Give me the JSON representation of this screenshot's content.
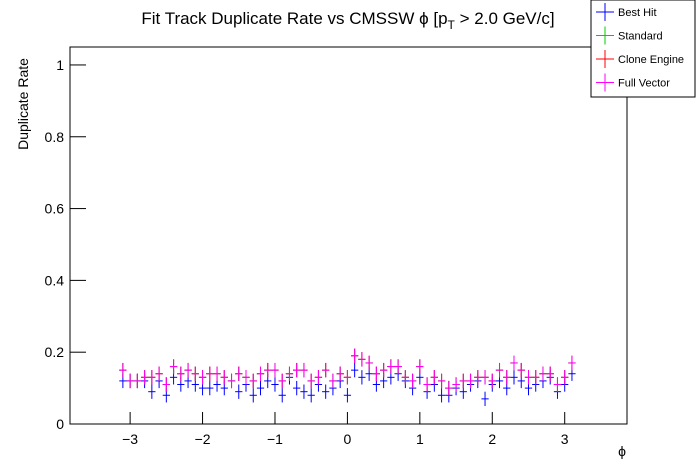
{
  "chart_data": {
    "type": "errorbar",
    "title": {
      "main": "Fit Track Duplicate Rate vs CMSSW ϕ [p",
      "sub": "T",
      "tail": " > 2.0 GeV/c]"
    },
    "x_label": "ϕ",
    "y_label": "Duplicate Rate",
    "xlim": [
      -3.83,
      3.86
    ],
    "ylim": [
      0,
      1.05
    ],
    "xticks": [
      {
        "value": -3,
        "label": "−3"
      },
      {
        "value": -2,
        "label": "−2"
      },
      {
        "value": -1,
        "label": "−1"
      },
      0,
      1,
      2,
      3
    ],
    "yticks": [
      0,
      0.2,
      0.4,
      0.6,
      0.8,
      1
    ],
    "xerr": 0.05,
    "x": [
      -3.1,
      -3.0,
      -2.9,
      -2.8,
      -2.7,
      -2.6,
      -2.5,
      -2.4,
      -2.3,
      -2.2,
      -2.1,
      -2.0,
      -1.9,
      -1.8,
      -1.7,
      -1.6,
      -1.5,
      -1.4,
      -1.3,
      -1.2,
      -1.1,
      -1.0,
      -0.9,
      -0.8,
      -0.7,
      -0.6,
      -0.5,
      -0.4,
      -0.3,
      -0.2,
      -0.1,
      0.0,
      0.1,
      0.2,
      0.3,
      0.4,
      0.5,
      0.6,
      0.7,
      0.8,
      0.9,
      1.0,
      1.1,
      1.2,
      1.3,
      1.4,
      1.5,
      1.6,
      1.7,
      1.8,
      1.9,
      2.0,
      2.1,
      2.2,
      2.3,
      2.4,
      2.5,
      2.6,
      2.7,
      2.8,
      2.9,
      3.0,
      3.1
    ],
    "legend": "top-right",
    "series": [
      {
        "name": "Best Hit",
        "color": "#0000ff",
        "error": 0.02,
        "values": [
          0.12,
          0.12,
          0.12,
          0.12,
          0.09,
          0.12,
          0.08,
          0.13,
          0.11,
          0.12,
          0.11,
          0.1,
          0.1,
          0.11,
          0.1,
          0.12,
          0.09,
          0.11,
          0.08,
          0.1,
          0.12,
          0.11,
          0.08,
          0.13,
          0.1,
          0.09,
          0.08,
          0.11,
          0.09,
          0.1,
          0.12,
          0.08,
          0.15,
          0.13,
          0.14,
          0.11,
          0.12,
          0.13,
          0.14,
          0.12,
          0.1,
          0.13,
          0.09,
          0.11,
          0.08,
          0.08,
          0.1,
          0.09,
          0.11,
          0.12,
          0.07,
          0.11,
          0.12,
          0.1,
          0.13,
          0.12,
          0.1,
          0.11,
          0.12,
          0.13,
          0.09,
          0.11,
          0.14
        ]
      },
      {
        "name": "Standard",
        "color": "#00cc00",
        "error": 0.02,
        "values": [
          0.15,
          0.12,
          0.12,
          0.13,
          0.13,
          0.14,
          0.11,
          0.16,
          0.14,
          0.15,
          0.14,
          0.13,
          0.14,
          0.14,
          0.13,
          0.12,
          0.14,
          0.13,
          0.12,
          0.14,
          0.15,
          0.15,
          0.12,
          0.14,
          0.15,
          0.15,
          0.12,
          0.13,
          0.15,
          0.12,
          0.14,
          0.13,
          0.19,
          0.18,
          0.17,
          0.14,
          0.15,
          0.16,
          0.16,
          0.13,
          0.12,
          0.16,
          0.11,
          0.13,
          0.12,
          0.1,
          0.11,
          0.12,
          0.12,
          0.13,
          0.13,
          0.12,
          0.15,
          0.13,
          0.17,
          0.15,
          0.13,
          0.13,
          0.14,
          0.14,
          0.11,
          0.13,
          0.17
        ]
      },
      {
        "name": "Clone Engine",
        "color": "#ff0000",
        "error": 0.02,
        "values": [
          0.15,
          0.12,
          0.12,
          0.13,
          0.13,
          0.14,
          0.11,
          0.16,
          0.14,
          0.15,
          0.14,
          0.13,
          0.14,
          0.14,
          0.13,
          0.12,
          0.14,
          0.13,
          0.12,
          0.14,
          0.15,
          0.15,
          0.12,
          0.14,
          0.15,
          0.15,
          0.12,
          0.13,
          0.15,
          0.12,
          0.14,
          0.13,
          0.19,
          0.18,
          0.17,
          0.14,
          0.15,
          0.16,
          0.16,
          0.13,
          0.12,
          0.16,
          0.11,
          0.13,
          0.12,
          0.1,
          0.11,
          0.12,
          0.12,
          0.13,
          0.13,
          0.12,
          0.15,
          0.13,
          0.17,
          0.15,
          0.13,
          0.13,
          0.14,
          0.14,
          0.11,
          0.13,
          0.17
        ]
      },
      {
        "name": "Full Vector",
        "color": "#ff00ff",
        "error": 0.02,
        "values": [
          0.15,
          0.12,
          0.12,
          0.13,
          0.13,
          0.14,
          0.11,
          0.16,
          0.14,
          0.15,
          0.14,
          0.13,
          0.14,
          0.14,
          0.13,
          0.12,
          0.14,
          0.13,
          0.12,
          0.14,
          0.15,
          0.15,
          0.12,
          0.14,
          0.15,
          0.15,
          0.12,
          0.13,
          0.15,
          0.12,
          0.14,
          0.13,
          0.19,
          0.18,
          0.17,
          0.14,
          0.15,
          0.16,
          0.16,
          0.13,
          0.12,
          0.16,
          0.11,
          0.13,
          0.12,
          0.1,
          0.11,
          0.12,
          0.12,
          0.13,
          0.13,
          0.12,
          0.15,
          0.13,
          0.17,
          0.15,
          0.13,
          0.13,
          0.14,
          0.14,
          0.11,
          0.13,
          0.17
        ]
      }
    ]
  }
}
